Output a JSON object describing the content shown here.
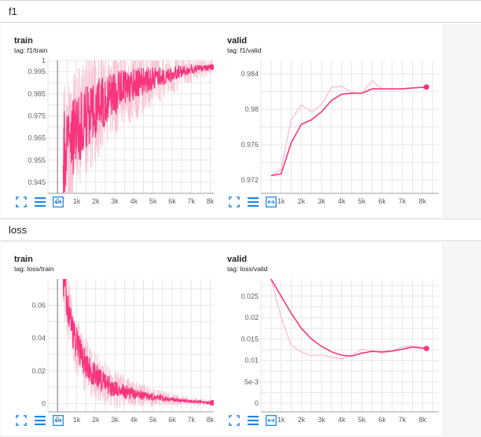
{
  "groups": [
    {
      "title": "f1",
      "cards": [
        {
          "title": "train",
          "tag": "tag: f1/train",
          "chart_data": {
            "type": "line",
            "x_ticks": [
              "0",
              "1k",
              "2k",
              "3k",
              "4k",
              "5k",
              "6k",
              "7k",
              "8k"
            ],
            "y_ticks": [
              "0.945",
              "0.955",
              "0.965",
              "0.975",
              "0.985",
              "0.995",
              "1"
            ],
            "ylim": [
              0.94,
              1.0
            ],
            "xlim": [
              -500,
              8800
            ],
            "x_start": 0,
            "x_vertical_axis": 0,
            "grid": true,
            "color": "#f7357d",
            "series": [
              {
                "values_smoothed": [
                  [
                    300,
                    0.958
                  ],
                  [
                    800,
                    0.965
                  ],
                  [
                    1500,
                    0.974
                  ],
                  [
                    2200,
                    0.98
                  ],
                  [
                    3000,
                    0.985
                  ],
                  [
                    4000,
                    0.989
                  ],
                  [
                    5000,
                    0.992
                  ],
                  [
                    6000,
                    0.994
                  ],
                  [
                    7000,
                    0.996
                  ],
                  [
                    8100,
                    0.997
                  ]
                ],
                "values_raw_envelope": [
                  0.93,
                  0.998
                ]
              }
            ]
          }
        },
        {
          "title": "valid",
          "tag": "tag: f1/valid",
          "chart_data": {
            "type": "line",
            "x_ticks": [
              "1k",
              "2k",
              "3k",
              "4k",
              "5k",
              "6k",
              "7k",
              "8k"
            ],
            "y_ticks": [
              "0.972",
              "0.976",
              "0.98",
              "0.984"
            ],
            "ylim": [
              0.9705,
              0.9855
            ],
            "xlim": [
              0,
              8800
            ],
            "grid": true,
            "color": "#f7357d",
            "series": [
              {
                "values_smoothed": [
                  [
                    500,
                    0.9725
                  ],
                  [
                    1000,
                    0.9727
                  ],
                  [
                    1500,
                    0.9762
                  ],
                  [
                    2000,
                    0.9783
                  ],
                  [
                    2500,
                    0.9788
                  ],
                  [
                    3000,
                    0.9797
                  ],
                  [
                    3500,
                    0.981
                  ],
                  [
                    4000,
                    0.9817
                  ],
                  [
                    4500,
                    0.9818
                  ],
                  [
                    5000,
                    0.9818
                  ],
                  [
                    5500,
                    0.9823
                  ],
                  [
                    6000,
                    0.9823
                  ],
                  [
                    6500,
                    0.9823
                  ],
                  [
                    7000,
                    0.9823
                  ],
                  [
                    7500,
                    0.9824
                  ],
                  [
                    8200,
                    0.9825
                  ]
                ],
                "values_raw": [
                  [
                    500,
                    0.9725
                  ],
                  [
                    1000,
                    0.9732
                  ],
                  [
                    1500,
                    0.9788
                  ],
                  [
                    2000,
                    0.9805
                  ],
                  [
                    2500,
                    0.9797
                  ],
                  [
                    3000,
                    0.9805
                  ],
                  [
                    3500,
                    0.9825
                  ],
                  [
                    4000,
                    0.9826
                  ],
                  [
                    4500,
                    0.9819
                  ],
                  [
                    5000,
                    0.9818
                  ],
                  [
                    5500,
                    0.9832
                  ],
                  [
                    6000,
                    0.9823
                  ],
                  [
                    6500,
                    0.9823
                  ],
                  [
                    7000,
                    0.9823
                  ],
                  [
                    7500,
                    0.9824
                  ],
                  [
                    8200,
                    0.9825
                  ]
                ]
              }
            ]
          }
        }
      ]
    },
    {
      "title": "loss",
      "cards": [
        {
          "title": "train",
          "tag": "tag: loss/train",
          "chart_data": {
            "type": "line",
            "x_ticks": [
              "0",
              "1k",
              "2k",
              "3k",
              "4k",
              "5k",
              "6k",
              "7k",
              "8k"
            ],
            "y_ticks": [
              "0",
              "0.02",
              "0.04",
              "0.06"
            ],
            "ylim": [
              -0.005,
              0.076
            ],
            "xlim": [
              -500,
              8800
            ],
            "x_start": 0,
            "x_vertical_axis": 0,
            "grid": true,
            "color": "#f7357d",
            "series": [
              {
                "values_smoothed": [
                  [
                    300,
                    0.076
                  ],
                  [
                    600,
                    0.055
                  ],
                  [
                    900,
                    0.04
                  ],
                  [
                    1300,
                    0.027
                  ],
                  [
                    1800,
                    0.019
                  ],
                  [
                    2400,
                    0.013
                  ],
                  [
                    3000,
                    0.009
                  ],
                  [
                    4000,
                    0.006
                  ],
                  [
                    5000,
                    0.004
                  ],
                  [
                    6000,
                    0.0025
                  ],
                  [
                    7000,
                    0.0015
                  ],
                  [
                    8100,
                    0.0005
                  ]
                ]
              }
            ]
          }
        },
        {
          "title": "valid",
          "tag": "tag: loss/valid",
          "chart_data": {
            "type": "line",
            "x_ticks": [
              "1k",
              "2k",
              "3k",
              "4k",
              "5k",
              "6k",
              "7k",
              "8k"
            ],
            "y_ticks": [
              "0",
              "5e-3",
              "0.01",
              "0.015",
              "0.02",
              "0.025"
            ],
            "ylim": [
              -0.002,
              0.029
            ],
            "xlim": [
              0,
              8800
            ],
            "grid": true,
            "color": "#f7357d",
            "series": [
              {
                "values_smoothed": [
                  [
                    500,
                    0.029
                  ],
                  [
                    1000,
                    0.025
                  ],
                  [
                    1500,
                    0.021
                  ],
                  [
                    2000,
                    0.0175
                  ],
                  [
                    2500,
                    0.015
                  ],
                  [
                    3000,
                    0.0133
                  ],
                  [
                    3500,
                    0.012
                  ],
                  [
                    4000,
                    0.0112
                  ],
                  [
                    4500,
                    0.011
                  ],
                  [
                    5000,
                    0.0117
                  ],
                  [
                    5500,
                    0.0121
                  ],
                  [
                    6000,
                    0.012
                  ],
                  [
                    6500,
                    0.0122
                  ],
                  [
                    7000,
                    0.0126
                  ],
                  [
                    7500,
                    0.0131
                  ],
                  [
                    8200,
                    0.0128
                  ]
                ],
                "values_raw": [
                  [
                    500,
                    0.029
                  ],
                  [
                    1000,
                    0.02
                  ],
                  [
                    1500,
                    0.0135
                  ],
                  [
                    2000,
                    0.012
                  ],
                  [
                    2500,
                    0.0111
                  ],
                  [
                    3000,
                    0.0113
                  ],
                  [
                    3500,
                    0.0107
                  ],
                  [
                    4000,
                    0.0104
                  ],
                  [
                    4500,
                    0.0112
                  ],
                  [
                    5000,
                    0.0126
                  ],
                  [
                    5500,
                    0.0123
                  ],
                  [
                    6000,
                    0.0117
                  ],
                  [
                    6500,
                    0.0122
                  ],
                  [
                    7000,
                    0.0131
                  ],
                  [
                    7500,
                    0.0134
                  ],
                  [
                    8200,
                    0.0128
                  ]
                ]
              }
            ]
          }
        }
      ]
    }
  ],
  "toolbar_icons": [
    "fit-to-data-icon",
    "list-icon",
    "expand-icon"
  ],
  "colors": {
    "accent": "#f7357d",
    "raw": "#f9c5d5",
    "icon": "#1e88e5",
    "grid": "#e3e3e3"
  }
}
